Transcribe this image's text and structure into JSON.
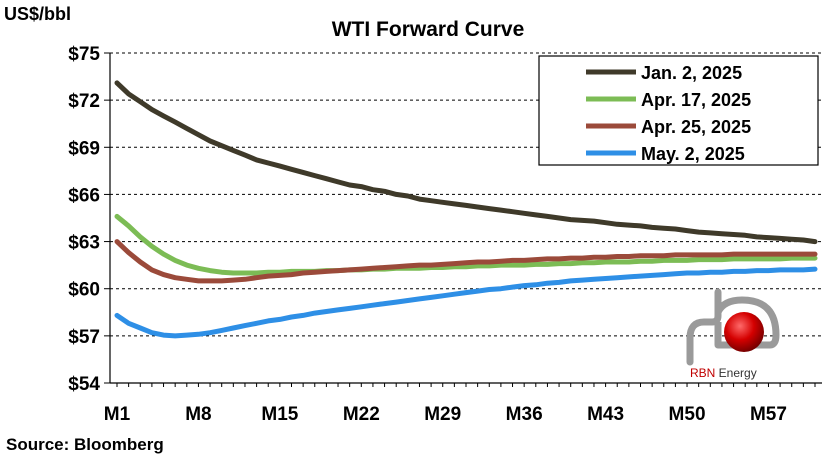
{
  "chart_data": {
    "type": "line",
    "title": "WTI Forward Curve",
    "ylabel": "US$/bbl",
    "source": "Source:  Bloomberg",
    "ylim": [
      54,
      75
    ],
    "y_ticks": [
      "$54",
      "$57",
      "$60",
      "$63",
      "$66",
      "$69",
      "$72",
      "$75"
    ],
    "y_tick_values": [
      54,
      57,
      60,
      63,
      66,
      69,
      72,
      75
    ],
    "xlim": [
      1,
      61
    ],
    "x_ticks": [
      "M1",
      "M8",
      "M15",
      "M22",
      "M29",
      "M36",
      "M43",
      "M50",
      "M57"
    ],
    "x_tick_values": [
      1,
      8,
      15,
      22,
      29,
      36,
      43,
      50,
      57
    ],
    "grid": "horizontal-dashed",
    "legend_position": "top-right",
    "x": [
      1,
      2,
      3,
      4,
      5,
      6,
      7,
      8,
      9,
      10,
      11,
      12,
      13,
      14,
      15,
      16,
      17,
      18,
      19,
      20,
      21,
      22,
      23,
      24,
      25,
      26,
      27,
      28,
      29,
      30,
      31,
      32,
      33,
      34,
      35,
      36,
      37,
      38,
      39,
      40,
      41,
      42,
      43,
      44,
      45,
      46,
      47,
      48,
      49,
      50,
      51,
      52,
      53,
      54,
      55,
      56,
      57,
      58,
      59,
      60,
      61
    ],
    "series": [
      {
        "name": "Jan. 2, 2025",
        "color": "#3f3a2a",
        "values": [
          73.1,
          72.4,
          71.9,
          71.4,
          71.0,
          70.6,
          70.2,
          69.8,
          69.4,
          69.1,
          68.8,
          68.5,
          68.2,
          68.0,
          67.8,
          67.6,
          67.4,
          67.2,
          67.0,
          66.8,
          66.6,
          66.5,
          66.3,
          66.2,
          66.0,
          65.9,
          65.7,
          65.6,
          65.5,
          65.4,
          65.3,
          65.2,
          65.1,
          65.0,
          64.9,
          64.8,
          64.7,
          64.6,
          64.5,
          64.4,
          64.35,
          64.3,
          64.2,
          64.1,
          64.05,
          64.0,
          63.9,
          63.85,
          63.8,
          63.7,
          63.6,
          63.55,
          63.5,
          63.45,
          63.4,
          63.3,
          63.25,
          63.2,
          63.15,
          63.1,
          63.0
        ]
      },
      {
        "name": "Apr. 17, 2025",
        "color": "#7cbc55",
        "values": [
          64.6,
          64.0,
          63.3,
          62.7,
          62.2,
          61.8,
          61.5,
          61.3,
          61.15,
          61.05,
          61.0,
          61.0,
          61.0,
          61.05,
          61.05,
          61.1,
          61.1,
          61.1,
          61.15,
          61.15,
          61.2,
          61.2,
          61.25,
          61.25,
          61.3,
          61.3,
          61.3,
          61.35,
          61.35,
          61.4,
          61.4,
          61.45,
          61.45,
          61.5,
          61.5,
          61.5,
          61.55,
          61.55,
          61.6,
          61.6,
          61.65,
          61.65,
          61.7,
          61.7,
          61.7,
          61.75,
          61.75,
          61.8,
          61.8,
          61.8,
          61.85,
          61.85,
          61.85,
          61.9,
          61.9,
          61.9,
          61.9,
          61.9,
          61.95,
          61.95,
          61.95
        ]
      },
      {
        "name": "Apr. 25, 2025",
        "color": "#9b4a3a",
        "values": [
          63.0,
          62.3,
          61.7,
          61.2,
          60.9,
          60.7,
          60.6,
          60.5,
          60.5,
          60.5,
          60.55,
          60.6,
          60.7,
          60.8,
          60.85,
          60.9,
          61.0,
          61.05,
          61.1,
          61.15,
          61.2,
          61.25,
          61.3,
          61.35,
          61.4,
          61.45,
          61.5,
          61.5,
          61.55,
          61.6,
          61.65,
          61.7,
          61.7,
          61.75,
          61.8,
          61.8,
          61.85,
          61.9,
          61.9,
          61.95,
          61.95,
          62.0,
          62.0,
          62.05,
          62.05,
          62.1,
          62.1,
          62.1,
          62.15,
          62.15,
          62.15,
          62.15,
          62.15,
          62.2,
          62.2,
          62.2,
          62.2,
          62.2,
          62.2,
          62.2,
          62.2
        ]
      },
      {
        "name": "May. 2, 2025",
        "color": "#2e8fe6",
        "values": [
          58.3,
          57.8,
          57.5,
          57.2,
          57.05,
          57.0,
          57.05,
          57.1,
          57.2,
          57.35,
          57.5,
          57.65,
          57.8,
          57.95,
          58.05,
          58.2,
          58.3,
          58.45,
          58.55,
          58.65,
          58.75,
          58.85,
          58.95,
          59.05,
          59.15,
          59.25,
          59.35,
          59.45,
          59.55,
          59.65,
          59.75,
          59.85,
          59.95,
          60.0,
          60.1,
          60.2,
          60.25,
          60.35,
          60.4,
          60.5,
          60.55,
          60.6,
          60.65,
          60.7,
          60.75,
          60.8,
          60.85,
          60.9,
          60.95,
          61.0,
          61.0,
          61.05,
          61.05,
          61.1,
          61.1,
          61.15,
          61.15,
          61.2,
          61.2,
          61.2,
          61.25
        ]
      }
    ]
  },
  "brand": {
    "name": "RBN Energy",
    "mark_color": "#c00000",
    "pipe_color": "#888888"
  }
}
